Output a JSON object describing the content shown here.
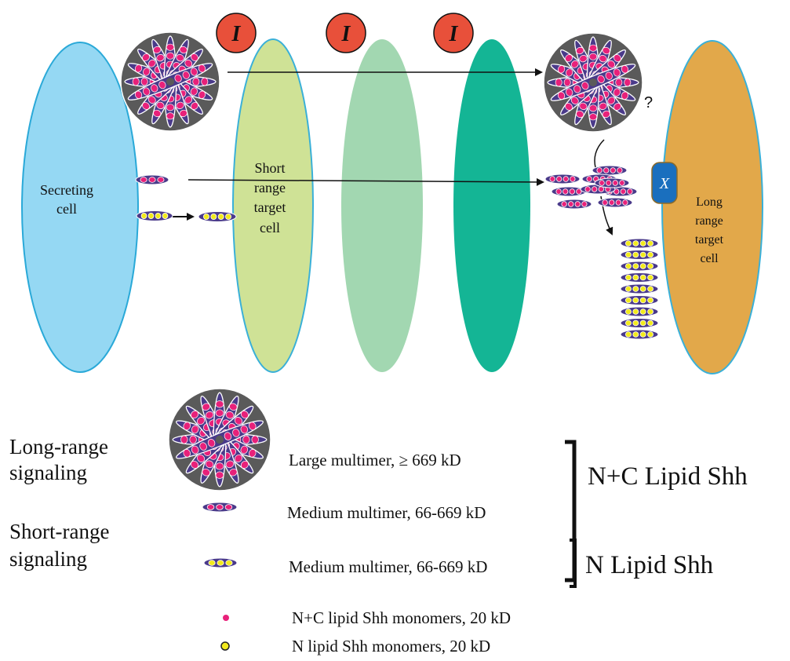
{
  "cells": {
    "secreting": [
      "Secreting",
      "cell"
    ],
    "short_range": [
      "Short",
      "range",
      "target",
      "cell"
    ],
    "long_range": [
      "Long",
      "range",
      "target",
      "cell"
    ]
  },
  "inhibitor_label": "I",
  "receptor_label": "X",
  "question_mark": "?",
  "legend": {
    "long_range_signaling": [
      "Long-range",
      "signaling"
    ],
    "short_range_signaling": [
      "Short-range",
      "signaling"
    ],
    "large_multimer": "Large multimer, ≥  669 kD",
    "medium_multimer_nc": "Medium multimer, 66-669 kD",
    "medium_multimer_n": "Medium multimer, 66-669 kD",
    "nc_lipid_group": "N+C Lipid Shh",
    "n_lipid_group": "N Lipid Shh",
    "nc_monomers": "N+C lipid Shh monomers, 20 kD",
    "n_monomers": "N lipid Shh monomers, 20 kD"
  },
  "colors": {
    "secreting_cell": "#95d8f3",
    "short_range_cell": "#cfe296",
    "middle_cell": "#a2d7b1",
    "teal_cell": "#14b595",
    "long_range_cell": "#e2a84a",
    "inhibitor": "#e8503a",
    "receptor": "#1a6fbe",
    "multimer_disc": "#5a5a5a",
    "nc_monomer": "#e8217a",
    "n_monomer": "#f2ea1d",
    "multimer_body": "#4a3a8a"
  }
}
